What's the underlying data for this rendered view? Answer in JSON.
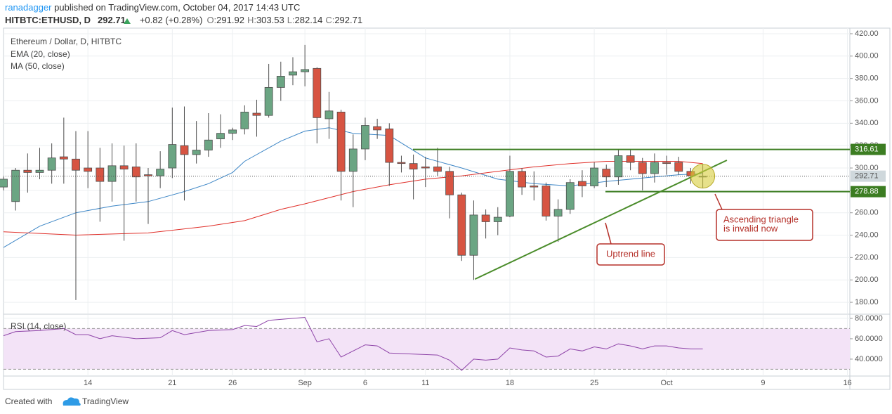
{
  "header": {
    "author": "ranadagger",
    "published": "published on TradingView.com, October 04, 2017 14:43 UTC",
    "symbol": "HITBTC:ETHUSD, D",
    "change": "+0.82 (+0.28%)",
    "ohlc_labels": [
      "O:",
      "H:",
      "L:",
      "C:"
    ]
  },
  "chart_data": [
    {
      "type": "candlestick",
      "title": "Ethereum / Dollar, D, HITBTC",
      "x": [
        7,
        8,
        9,
        10,
        11,
        12,
        13,
        14,
        15,
        16,
        17,
        18,
        19,
        20,
        21,
        22,
        23,
        24,
        25,
        26,
        27,
        28,
        29,
        30,
        31,
        32,
        33,
        34,
        35,
        36,
        37,
        38,
        39,
        40,
        41,
        42,
        43,
        44,
        45,
        46,
        47,
        48,
        49,
        50,
        51,
        52,
        53,
        54,
        55,
        56,
        57,
        58,
        59,
        60,
        61,
        62,
        63,
        64,
        65
      ],
      "open": [
        283,
        270,
        298,
        296,
        298,
        310,
        308,
        300,
        300,
        288,
        302,
        301,
        294,
        293,
        300,
        320,
        312,
        316,
        326,
        331,
        335,
        349,
        347,
        372,
        383,
        386,
        389,
        344,
        350,
        297,
        317,
        337,
        335,
        305,
        304,
        301,
        301,
        297,
        276,
        222,
        258,
        252,
        257,
        297,
        284,
        284,
        257,
        263,
        288,
        284,
        299,
        292,
        311,
        305,
        295,
        305,
        305,
        297,
        291.92
      ],
      "high": [
        292,
        300,
        313,
        318,
        322,
        345,
        333,
        333,
        318,
        322,
        320,
        322,
        300,
        315,
        354,
        355,
        342,
        349,
        348,
        336,
        356,
        361,
        393,
        395,
        399,
        410,
        390,
        368,
        352,
        330,
        345,
        344,
        340,
        311,
        312,
        310,
        318,
        301,
        278,
        271,
        263,
        265,
        311,
        300,
        297,
        287,
        272,
        290,
        298,
        305,
        303,
        316,
        316,
        309,
        313,
        311,
        310,
        300,
        303.53
      ],
      "low": [
        280,
        262,
        278,
        290,
        286,
        286,
        182,
        282,
        252,
        270,
        235,
        270,
        250,
        282,
        291,
        271,
        304,
        310,
        318,
        325,
        330,
        328,
        345,
        360,
        374,
        373,
        322,
        326,
        271,
        265,
        307,
        326,
        284,
        296,
        272,
        283,
        293,
        255,
        217,
        200,
        237,
        240,
        256,
        276,
        271,
        253,
        234,
        259,
        274,
        282,
        283,
        285,
        298,
        280,
        287,
        294,
        294,
        286,
        282.14
      ],
      "close": [
        290,
        298,
        296,
        298,
        309,
        308,
        298,
        297,
        288,
        302,
        299,
        292,
        293,
        299,
        321,
        312,
        316,
        325,
        331,
        334,
        350,
        347,
        372,
        382,
        386,
        388,
        345,
        351,
        297,
        317,
        338,
        334,
        305,
        304,
        299,
        300,
        297,
        276,
        222,
        258,
        252,
        256,
        297,
        283,
        283,
        257,
        263,
        287,
        284,
        300,
        292,
        311,
        305,
        295,
        305,
        304,
        297,
        293,
        292.71
      ],
      "up_color": "#6ba583",
      "down_color": "#d75442",
      "wick_color": "#4d4d4d",
      "overlays": [
        {
          "name": "EMA (20, close)",
          "color": "#3d86c6",
          "x": [
            7,
            10,
            13,
            16,
            19,
            22,
            24,
            26,
            27,
            30,
            32,
            34,
            36,
            39,
            42,
            45,
            48,
            51,
            54,
            57,
            60,
            63,
            65
          ],
          "values": [
            229,
            248,
            260,
            266,
            270,
            279,
            286,
            296,
            306,
            324,
            333,
            336,
            331,
            329,
            309,
            300,
            290,
            286,
            284,
            288,
            291,
            294,
            295
          ]
        },
        {
          "name": "MA (50, close)",
          "color": "#e0302a",
          "x": [
            7,
            13,
            19,
            24,
            27,
            30,
            32,
            36,
            39,
            42,
            45,
            48,
            51,
            54,
            57,
            60,
            63,
            65
          ],
          "values": [
            243,
            240,
            242,
            248,
            253,
            263,
            268,
            279,
            285,
            290,
            293,
            297,
            301,
            304,
            306,
            306,
            306,
            304
          ]
        }
      ],
      "xlim": [
        7,
        77.2
      ],
      "xticks": [
        14,
        21,
        26,
        {
          "value": 32,
          "label": "Sep"
        },
        {
          "value": 37,
          "label": "6"
        },
        {
          "value": 42,
          "label": "11"
        },
        {
          "value": 49,
          "label": "18"
        },
        {
          "value": 56,
          "label": "25"
        },
        {
          "value": 62,
          "label": "Oct"
        },
        {
          "value": 70,
          "label": "9"
        },
        {
          "value": 77,
          "label": "16"
        }
      ],
      "ylim": [
        170,
        425
      ],
      "yticks": [
        {
          "value": 180,
          "label": "180.00"
        },
        {
          "value": 200,
          "label": "200.00"
        },
        {
          "value": 220,
          "label": "220.00"
        },
        {
          "value": 240,
          "label": "240.00"
        },
        {
          "value": 260,
          "label": "260.00"
        },
        {
          "value": 280,
          "label": "280.00"
        },
        {
          "value": 300,
          "label": "300.00"
        },
        {
          "value": 320,
          "label": "320.00"
        },
        {
          "value": 340,
          "label": "340.00"
        },
        {
          "value": 360,
          "label": "360.00"
        },
        {
          "value": 380,
          "label": "380.00"
        },
        {
          "value": 400,
          "label": "400.00"
        },
        {
          "value": 420,
          "label": "420.00"
        }
      ],
      "grid": true,
      "levels": [
        316.61,
        278.88
      ],
      "level_color": "#3c7d22",
      "trend_line": {
        "x": [
          46.1,
          67
        ],
        "values": [
          200.7,
          306.9
        ],
        "color": "#4a8c2a"
      },
      "annotations": [
        {
          "lines": [
            "Uptrend line"
          ]
        },
        {
          "lines": [
            "Ascending triangle",
            "is invalid now"
          ]
        }
      ],
      "annotation_color": "#b5312a"
    },
    {
      "type": "line",
      "title": "RSI (14, close)",
      "x": [
        7,
        8,
        10,
        12,
        13,
        14,
        15,
        16,
        18,
        20,
        21,
        22,
        24,
        26,
        27,
        28,
        29,
        30,
        32,
        33,
        34,
        35,
        37,
        38,
        39,
        41,
        43,
        44,
        45,
        46,
        47,
        48,
        49,
        50,
        51,
        52,
        53,
        54,
        55,
        56,
        57,
        58,
        59,
        60,
        61,
        62,
        63,
        64,
        65
      ],
      "values": [
        63,
        67,
        68,
        70,
        64,
        64,
        60,
        63,
        60,
        61,
        68,
        64,
        68,
        69,
        73,
        72,
        78,
        79,
        81,
        57,
        60,
        42,
        54,
        53,
        46,
        45,
        44,
        39,
        29,
        40,
        39,
        40,
        51,
        49,
        48,
        42,
        43,
        50,
        48,
        52,
        50,
        55,
        53,
        50,
        53,
        53,
        51,
        50,
        50
      ],
      "color": "#8e44a8",
      "band": [
        30,
        70
      ],
      "band_color": "#f3e3f7",
      "xlim": [
        7,
        77.2
      ],
      "ylim": [
        23.4,
        83.4
      ],
      "yticks": [
        {
          "value": 40,
          "label": "40.0000"
        },
        {
          "value": 60,
          "label": "60.0000"
        },
        {
          "value": 80,
          "label": "80.0000"
        }
      ],
      "grid": true
    }
  ],
  "footer": {
    "created": "Created with",
    "brand": "TradingView"
  }
}
